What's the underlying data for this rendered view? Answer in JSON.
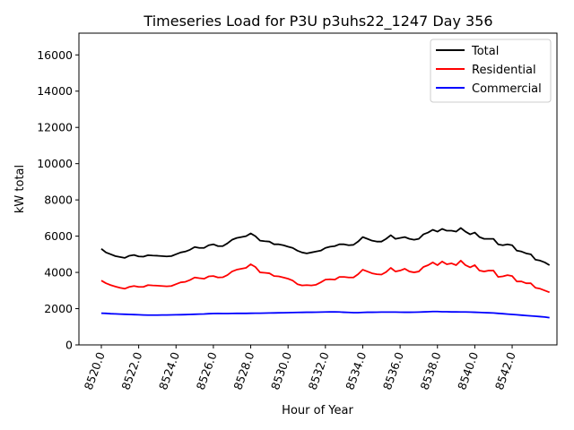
{
  "chart_data": {
    "type": "line",
    "title": "Timeseries Load for P3U p3uhs22_1247  Day 356",
    "xlabel": "Hour of Year",
    "ylabel": "kW total",
    "xlim": [
      8518.8,
      8544.4
    ],
    "ylim": [
      0,
      17200
    ],
    "x_ticks": [
      8520,
      8522,
      8524,
      8526,
      8528,
      8530,
      8532,
      8534,
      8536,
      8538,
      8540,
      8542
    ],
    "x_tick_labels": [
      "8520.0",
      "8522.0",
      "8524.0",
      "8526.0",
      "8528.0",
      "8530.0",
      "8532.0",
      "8534.0",
      "8536.0",
      "8538.0",
      "8540.0",
      "8542.0"
    ],
    "y_ticks": [
      0,
      2000,
      4000,
      6000,
      8000,
      10000,
      12000,
      14000,
      16000
    ],
    "y_tick_labels": [
      "0",
      "2000",
      "4000",
      "6000",
      "8000",
      "10000",
      "12000",
      "14000",
      "16000"
    ],
    "legend_position": "top-right",
    "x_start": 8520,
    "x_step": 0.25,
    "series": [
      {
        "name": "Total",
        "color": "#000000",
        "values": [
          5300,
          5100,
          5000,
          4900,
          4850,
          4800,
          4920,
          4960,
          4880,
          4870,
          4950,
          4930,
          4920,
          4900,
          4880,
          4900,
          5000,
          5100,
          5150,
          5250,
          5400,
          5350,
          5350,
          5500,
          5550,
          5450,
          5450,
          5600,
          5800,
          5900,
          5950,
          6000,
          6150,
          6000,
          5750,
          5720,
          5700,
          5550,
          5550,
          5500,
          5420,
          5350,
          5200,
          5100,
          5050,
          5100,
          5150,
          5200,
          5350,
          5420,
          5450,
          5550,
          5550,
          5500,
          5520,
          5700,
          5950,
          5850,
          5750,
          5700,
          5700,
          5850,
          6050,
          5850,
          5900,
          5950,
          5850,
          5800,
          5850,
          6100,
          6200,
          6350,
          6250,
          6400,
          6300,
          6300,
          6250,
          6450,
          6250,
          6100,
          6200,
          5950,
          5850,
          5850,
          5850,
          5550,
          5500,
          5550,
          5500,
          5200,
          5150,
          5050,
          5000,
          4700,
          4650,
          4550,
          4400
        ]
      },
      {
        "name": "Residential",
        "color": "#ff0000",
        "values": [
          3550,
          3400,
          3300,
          3220,
          3150,
          3100,
          3200,
          3250,
          3200,
          3200,
          3300,
          3280,
          3270,
          3250,
          3230,
          3250,
          3350,
          3450,
          3480,
          3580,
          3720,
          3680,
          3650,
          3780,
          3800,
          3720,
          3730,
          3850,
          4050,
          4150,
          4200,
          4250,
          4450,
          4300,
          4000,
          3980,
          3950,
          3800,
          3780,
          3720,
          3650,
          3550,
          3350,
          3280,
          3300,
          3280,
          3320,
          3450,
          3600,
          3620,
          3600,
          3750,
          3750,
          3720,
          3720,
          3900,
          4150,
          4050,
          3950,
          3900,
          3880,
          4020,
          4250,
          4050,
          4100,
          4200,
          4050,
          4000,
          4050,
          4300,
          4400,
          4550,
          4400,
          4600,
          4450,
          4500,
          4400,
          4650,
          4400,
          4280,
          4400,
          4100,
          4050,
          4100,
          4100,
          3750,
          3780,
          3850,
          3800,
          3500,
          3500,
          3400,
          3400,
          3150,
          3100,
          3000,
          2900
        ]
      },
      {
        "name": "Commercial",
        "color": "#0000ff",
        "values": [
          1750,
          1740,
          1720,
          1710,
          1700,
          1690,
          1680,
          1670,
          1660,
          1650,
          1645,
          1645,
          1645,
          1650,
          1650,
          1655,
          1660,
          1665,
          1670,
          1680,
          1690,
          1700,
          1705,
          1720,
          1730,
          1735,
          1730,
          1730,
          1735,
          1740,
          1740,
          1740,
          1745,
          1750,
          1750,
          1755,
          1760,
          1765,
          1770,
          1775,
          1780,
          1785,
          1790,
          1795,
          1800,
          1800,
          1805,
          1810,
          1815,
          1820,
          1820,
          1815,
          1800,
          1790,
          1780,
          1780,
          1790,
          1800,
          1800,
          1805,
          1810,
          1810,
          1810,
          1810,
          1805,
          1800,
          1800,
          1805,
          1810,
          1820,
          1830,
          1840,
          1840,
          1830,
          1830,
          1820,
          1820,
          1815,
          1815,
          1810,
          1800,
          1790,
          1780,
          1770,
          1760,
          1740,
          1720,
          1700,
          1680,
          1660,
          1640,
          1620,
          1600,
          1580,
          1560,
          1540,
          1500
        ]
      }
    ]
  }
}
